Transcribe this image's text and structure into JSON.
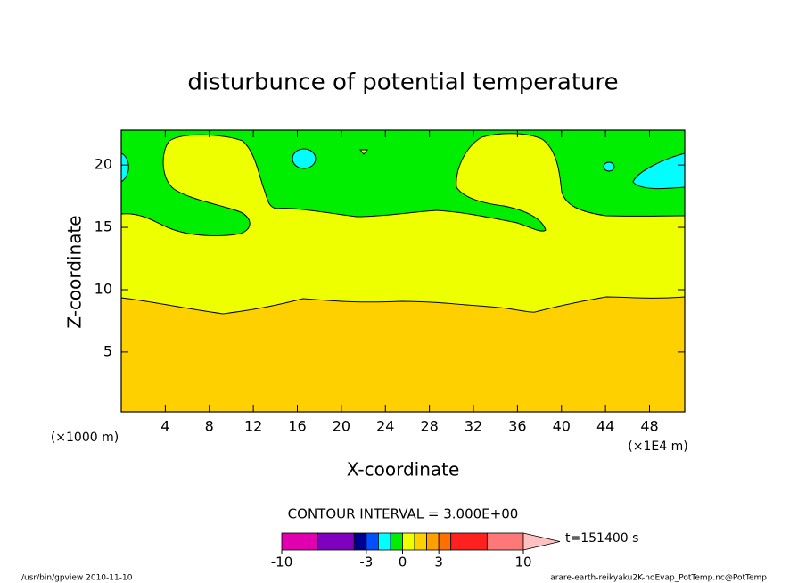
{
  "chart_data": {
    "type": "contour",
    "title": "disturbunce of potential temperature",
    "xlabel": "X-coordinate",
    "ylabel": "Z-coordinate",
    "xunit": "(×1E4 m)",
    "yunit": "(×1000 m)",
    "xlim": [
      0,
      51.2
    ],
    "ylim": [
      0.2,
      22.8
    ],
    "xticks": [
      4,
      8,
      12,
      16,
      20,
      24,
      28,
      32,
      36,
      40,
      44,
      48
    ],
    "yticks": [
      5,
      10,
      15,
      20
    ],
    "colorbar": {
      "title": "CONTOUR INTERVAL = 3.000E+00",
      "levels": [
        -10,
        -7,
        -4,
        -3,
        -2,
        -1,
        0,
        1,
        2,
        3,
        4,
        7,
        10
      ],
      "colors": [
        "#e000b0",
        "#8000c0",
        "#000090",
        "#0050ff",
        "#00ffff",
        "#00ee00",
        "#eeff00",
        "#ffd000",
        "#ffa000",
        "#ff7000",
        "#ff2020",
        "#ff7878"
      ],
      "extend_color": "#ffc0c0",
      "ticks": [
        -10,
        -3,
        0,
        3,
        10
      ]
    },
    "annotation": "t=151400 s",
    "footer_left": "/usr/bin/gpview  2010-11-10",
    "footer_right": "arare-earth-reikyaku2K-noEvap_PotTemp.nc@PotTemp"
  }
}
